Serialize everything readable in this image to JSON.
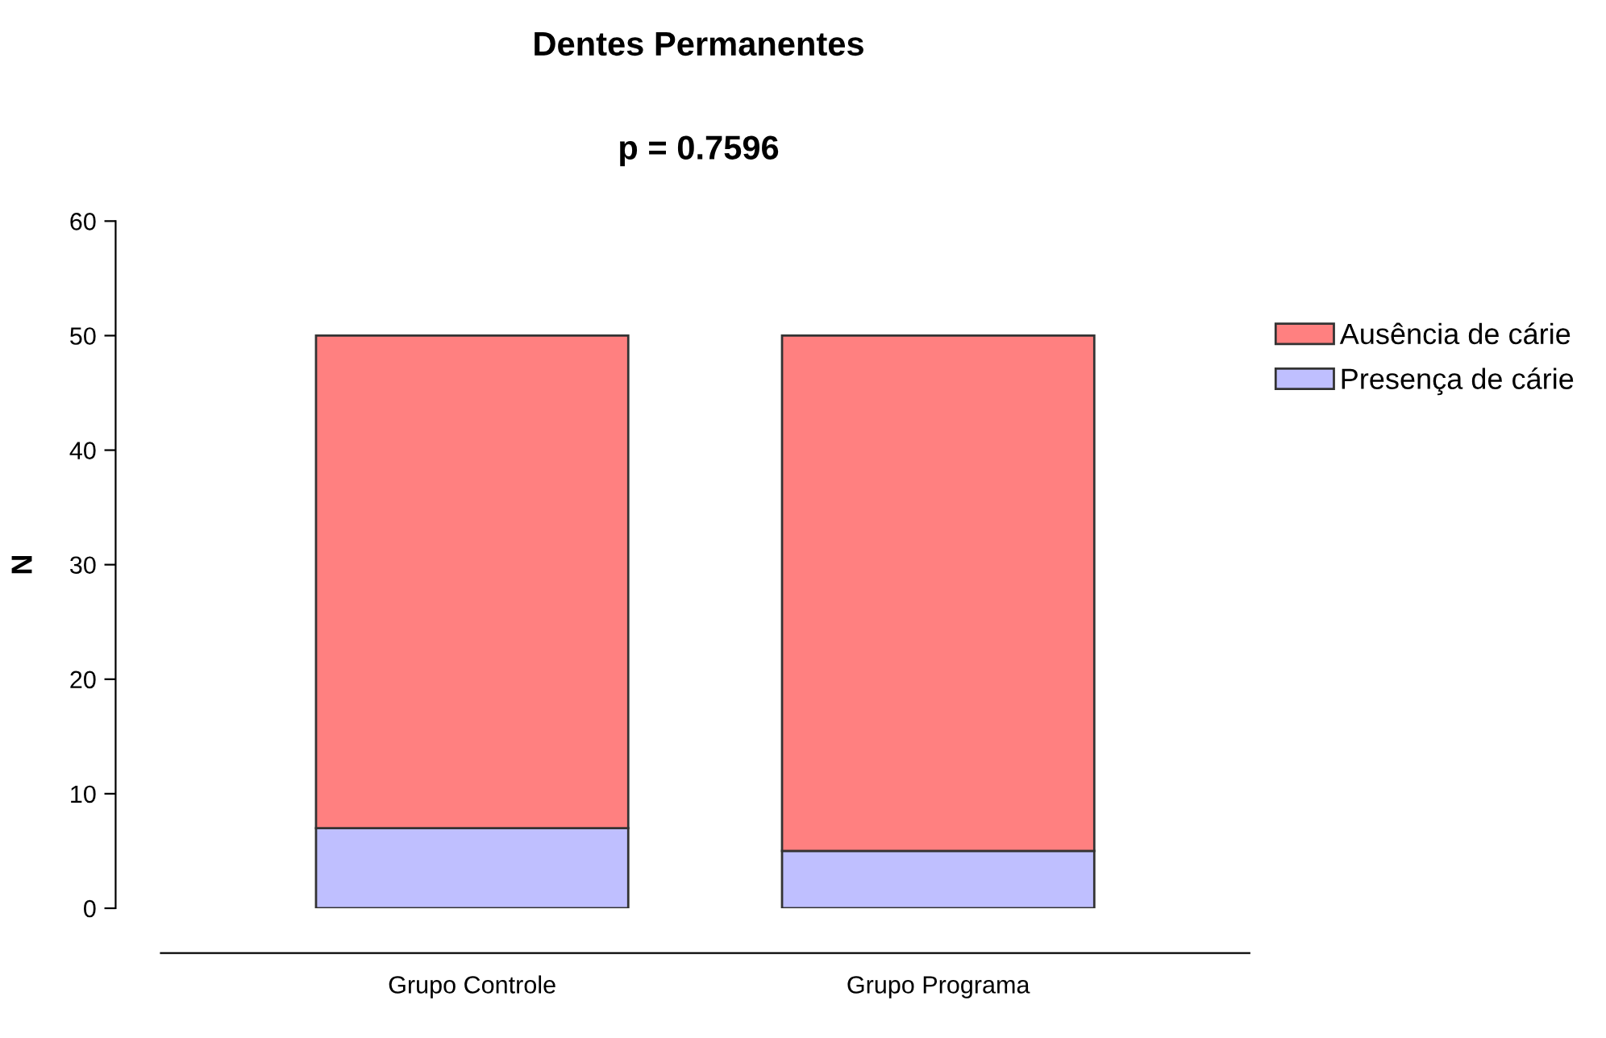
{
  "chart_data": {
    "type": "bar",
    "title": "Dentes Permanentes",
    "subtitle": "p = 0.7596",
    "ylabel": "N",
    "categories": [
      "Grupo Controle",
      "Grupo Programa"
    ],
    "stacked": true,
    "series": [
      {
        "name": "Presença de cárie",
        "color": "#bfbfff",
        "values": [
          7,
          5
        ]
      },
      {
        "name": "Ausência de cárie",
        "color": "#ff8080",
        "values": [
          43,
          45
        ]
      }
    ],
    "ylim": [
      0,
      60
    ],
    "yticks": [
      0,
      10,
      20,
      30,
      40,
      50,
      60
    ],
    "grid": false,
    "legend": "right"
  }
}
